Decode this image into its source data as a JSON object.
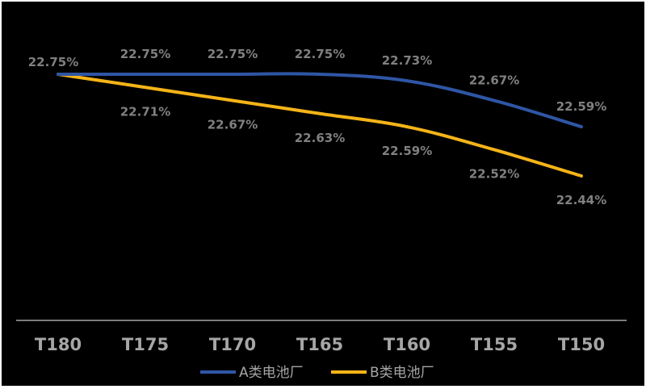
{
  "chart_data": {
    "type": "line",
    "title": "",
    "xlabel": "",
    "ylabel": "",
    "categories": [
      "T180",
      "T175",
      "T170",
      "T165",
      "T160",
      "T155",
      "T150"
    ],
    "series": [
      {
        "name": "A类电池厂",
        "color": "#2f56a5",
        "values": [
          22.75,
          22.75,
          22.75,
          22.75,
          22.73,
          22.67,
          22.59
        ],
        "labels": [
          "22.75%",
          "22.75%",
          "22.75%",
          "22.75%",
          "22.73%",
          "22.67%",
          "22.59%"
        ]
      },
      {
        "name": "B类电池厂",
        "color": "#f5b418",
        "values": [
          22.75,
          22.71,
          22.67,
          22.63,
          22.59,
          22.52,
          22.44
        ],
        "labels": [
          "22.75%",
          "22.71%",
          "22.67%",
          "22.63%",
          "22.59%",
          "22.52%",
          "22.44%"
        ]
      }
    ],
    "ylim": [
      22.0,
      22.85
    ],
    "grid": false,
    "legend": "bottom",
    "label_color": "#808080",
    "axis_color": "#a6a6a6",
    "background": "#000000"
  }
}
